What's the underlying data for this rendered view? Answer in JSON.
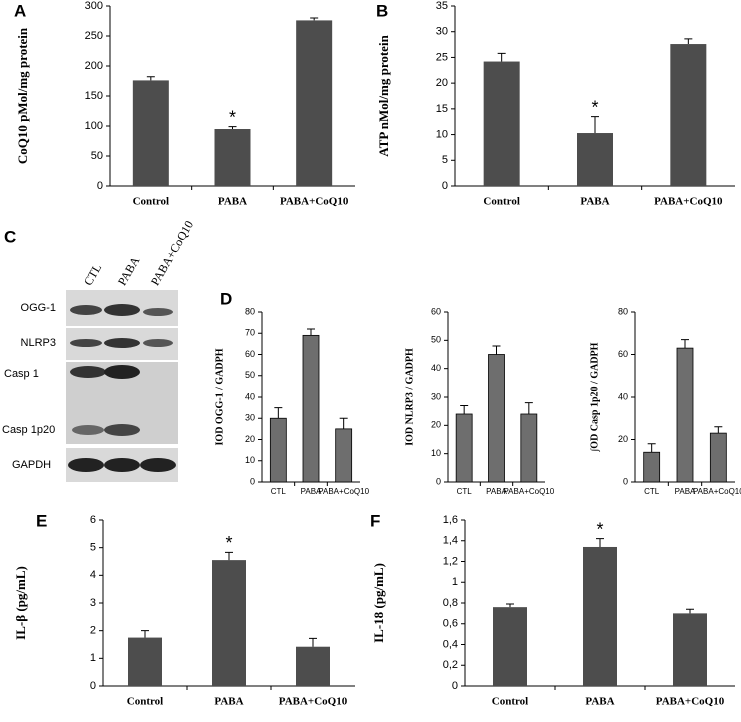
{
  "chart_data": [
    {
      "type": "bar",
      "panel": "A",
      "ylabel": "CoQ10 pMol/mg protein",
      "categories": [
        "Control",
        "PABA",
        "PABA+CoQ10"
      ],
      "values": [
        176,
        95,
        276
      ],
      "errors": [
        6,
        4,
        4
      ],
      "color": "#4d4d4d",
      "ylim": [
        0,
        300
      ],
      "yticks": [
        0,
        50,
        100,
        150,
        200,
        250,
        300
      ],
      "annotations": [
        {
          "text": "*",
          "category": "PABA"
        }
      ]
    },
    {
      "type": "bar",
      "panel": "B",
      "ylabel": "ATP nMol/mg protein",
      "categories": [
        "Control",
        "PABA",
        "PABA+CoQ10"
      ],
      "values": [
        24.2,
        10.3,
        27.6
      ],
      "errors": [
        1.6,
        3.2,
        1.0
      ],
      "color": "#4d4d4d",
      "ylim": [
        0,
        35
      ],
      "yticks": [
        0,
        5,
        10,
        15,
        20,
        25,
        30,
        35
      ],
      "annotations": [
        {
          "text": "*",
          "category": "PABA"
        }
      ]
    },
    {
      "type": "bar",
      "panel": "D",
      "ylabel": "IOD OGG-1 / GADPH",
      "categories": [
        "CTL",
        "PABA",
        "PABA+CoQ10"
      ],
      "values": [
        30,
        69,
        25
      ],
      "errors": [
        5,
        3,
        5
      ],
      "color": "#6e6e6e",
      "ylim": [
        0,
        80
      ],
      "yticks": [
        0,
        10,
        20,
        30,
        40,
        50,
        60,
        70,
        80
      ]
    },
    {
      "type": "bar",
      "ylabel": "IOD NLRP3 / GADPH",
      "categories": [
        "CTL",
        "PABA",
        "PABA+CoQ10"
      ],
      "values": [
        24,
        45,
        24
      ],
      "errors": [
        3,
        3,
        4
      ],
      "color": "#6e6e6e",
      "ylim": [
        0,
        60
      ],
      "yticks": [
        0,
        10,
        20,
        30,
        40,
        50,
        60
      ]
    },
    {
      "type": "bar",
      "ylabel": "∫OD Casp 1p20 / GADPH",
      "categories": [
        "CTL",
        "PABA",
        "PABA+CoQ10"
      ],
      "values": [
        14,
        63,
        23
      ],
      "errors": [
        4,
        4,
        3
      ],
      "color": "#6e6e6e",
      "ylim": [
        0,
        80
      ],
      "yticks": [
        0,
        20,
        40,
        60,
        80
      ]
    },
    {
      "type": "bar",
      "panel": "E",
      "ylabel": "IL-β (pg/mL)",
      "categories": [
        "Control",
        "PABA",
        "PABA+CoQ10"
      ],
      "values": [
        1.75,
        4.55,
        1.42
      ],
      "errors": [
        0.25,
        0.28,
        0.3
      ],
      "color": "#4d4d4d",
      "ylim": [
        0,
        6
      ],
      "yticks": [
        0,
        1,
        2,
        3,
        4,
        5,
        6
      ],
      "annotations": [
        {
          "text": "*",
          "category": "PABA"
        }
      ]
    },
    {
      "type": "bar",
      "panel": "F",
      "ylabel": "IL-18 (pg/mL)",
      "categories": [
        "Control",
        "PABA",
        "PABA+CoQ10"
      ],
      "values": [
        0.76,
        1.34,
        0.7
      ],
      "errors": [
        0.03,
        0.08,
        0.04
      ],
      "color": "#4d4d4d",
      "ylim": [
        0,
        1.6
      ],
      "yticks": [
        0,
        {
          "value": 0.2,
          "label": "0,2"
        },
        {
          "value": 0.4,
          "label": "0,4"
        },
        {
          "value": 0.6,
          "label": "0,6"
        },
        {
          "value": 0.8,
          "label": "0,8"
        },
        {
          "value": 1,
          "label": "1"
        },
        {
          "value": 1.2,
          "label": "1,2"
        },
        {
          "value": 1.4,
          "label": "1,4"
        },
        {
          "value": 1.6,
          "label": "1,6"
        }
      ],
      "annotations": [
        {
          "text": "*",
          "category": "PABA"
        }
      ]
    }
  ],
  "blot": {
    "panel": "C",
    "lanes": [
      "CTL",
      "PABA",
      "PABA+CoQ10"
    ],
    "rows": [
      "OGG-1",
      "NLRP3",
      "Casp 1",
      "Casp 1p20",
      "GAPDH"
    ]
  }
}
